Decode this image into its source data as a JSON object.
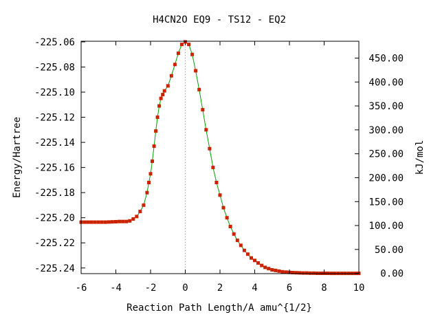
{
  "chart_data": {
    "type": "line",
    "title": "H4CN2O   EQ9 - TS12 - EQ2",
    "xlabel": "Reaction Path Length/A amu^{1/2}",
    "ylabel": "Energy/Hartree",
    "y2label": "kJ/mol",
    "xlim": [
      -6,
      10
    ],
    "ylim": [
      -225.2445,
      -225.0595
    ],
    "xticks": [
      -6,
      -4,
      -2,
      0,
      2,
      4,
      6,
      8,
      10
    ],
    "yticks": [
      -225.06,
      -225.08,
      -225.1,
      -225.12,
      -225.14,
      -225.16,
      -225.18,
      -225.2,
      -225.22,
      -225.24
    ],
    "ytick_labels": [
      "-225.06",
      "-225.08",
      "-225.10",
      "-225.12",
      "-225.14",
      "-225.16",
      "-225.18",
      "-225.20",
      "-225.22",
      "-225.24"
    ],
    "y2_zero_energy": -225.2443,
    "y2_kj_per_hartree": 2625.5,
    "y2ticks": [
      0,
      50,
      100,
      150,
      200,
      250,
      300,
      350,
      400,
      450
    ],
    "y2tick_labels": [
      "0.00",
      "50.00",
      "100.00",
      "150.00",
      "200.00",
      "250.00",
      "300.00",
      "350.00",
      "400.00",
      "450.00"
    ],
    "ts_marker_x": 0,
    "grid": false,
    "legend": "none",
    "line_color": "#00a000",
    "point_color": "#cc2200",
    "vline_color": "#999999",
    "series": [
      {
        "points": [
          [
            -6.0,
            -225.2035
          ],
          [
            -5.8,
            -225.2035
          ],
          [
            -5.6,
            -225.2035
          ],
          [
            -5.4,
            -225.2035
          ],
          [
            -5.2,
            -225.2035
          ],
          [
            -5.0,
            -225.2035
          ],
          [
            -4.8,
            -225.2035
          ],
          [
            -4.6,
            -225.2035
          ],
          [
            -4.4,
            -225.2034
          ],
          [
            -4.2,
            -225.2033
          ],
          [
            -4.0,
            -225.2032
          ],
          [
            -3.8,
            -225.203
          ],
          [
            -3.6,
            -225.203
          ],
          [
            -3.4,
            -225.203
          ],
          [
            -3.2,
            -225.2025
          ],
          [
            -3.0,
            -225.201
          ],
          [
            -2.8,
            -225.199
          ],
          [
            -2.6,
            -225.195
          ],
          [
            -2.4,
            -225.19
          ],
          [
            -2.2,
            -225.18
          ],
          [
            -2.1,
            -225.172
          ],
          [
            -2.0,
            -225.165
          ],
          [
            -1.9,
            -225.155
          ],
          [
            -1.8,
            -225.143
          ],
          [
            -1.7,
            -225.131
          ],
          [
            -1.6,
            -225.12
          ],
          [
            -1.5,
            -225.111
          ],
          [
            -1.4,
            -225.105
          ],
          [
            -1.3,
            -225.102
          ],
          [
            -1.2,
            -225.099
          ],
          [
            -1.0,
            -225.095
          ],
          [
            -0.8,
            -225.087
          ],
          [
            -0.6,
            -225.078
          ],
          [
            -0.4,
            -225.069
          ],
          [
            -0.2,
            -225.062
          ],
          [
            0.0,
            -225.06
          ],
          [
            0.2,
            -225.062
          ],
          [
            0.4,
            -225.07
          ],
          [
            0.6,
            -225.083
          ],
          [
            0.8,
            -225.098
          ],
          [
            1.0,
            -225.114
          ],
          [
            1.2,
            -225.13
          ],
          [
            1.4,
            -225.145
          ],
          [
            1.6,
            -225.16
          ],
          [
            1.8,
            -225.172
          ],
          [
            2.0,
            -225.182
          ],
          [
            2.2,
            -225.192
          ],
          [
            2.4,
            -225.2
          ],
          [
            2.6,
            -225.207
          ],
          [
            2.8,
            -225.213
          ],
          [
            3.0,
            -225.218
          ],
          [
            3.2,
            -225.222
          ],
          [
            3.4,
            -225.226
          ],
          [
            3.6,
            -225.229
          ],
          [
            3.8,
            -225.232
          ],
          [
            4.0,
            -225.234
          ],
          [
            4.2,
            -225.236
          ],
          [
            4.4,
            -225.238
          ],
          [
            4.6,
            -225.2395
          ],
          [
            4.8,
            -225.2405
          ],
          [
            5.0,
            -225.2415
          ],
          [
            5.2,
            -225.242
          ],
          [
            5.4,
            -225.2425
          ],
          [
            5.6,
            -225.243
          ],
          [
            5.8,
            -225.2433
          ],
          [
            6.0,
            -225.2435
          ],
          [
            6.2,
            -225.2437
          ],
          [
            6.4,
            -225.2438
          ],
          [
            6.6,
            -225.2439
          ],
          [
            6.8,
            -225.244
          ],
          [
            7.0,
            -225.244
          ],
          [
            7.2,
            -225.2441
          ],
          [
            7.4,
            -225.2441
          ],
          [
            7.6,
            -225.2442
          ],
          [
            7.8,
            -225.2442
          ],
          [
            8.0,
            -225.2442
          ],
          [
            8.2,
            -225.2442
          ],
          [
            8.4,
            -225.2443
          ],
          [
            8.6,
            -225.2443
          ],
          [
            8.8,
            -225.2443
          ],
          [
            9.0,
            -225.2443
          ],
          [
            9.2,
            -225.2443
          ],
          [
            9.4,
            -225.2443
          ],
          [
            9.6,
            -225.2443
          ],
          [
            9.8,
            -225.2443
          ],
          [
            10.0,
            -225.2443
          ]
        ]
      }
    ]
  }
}
